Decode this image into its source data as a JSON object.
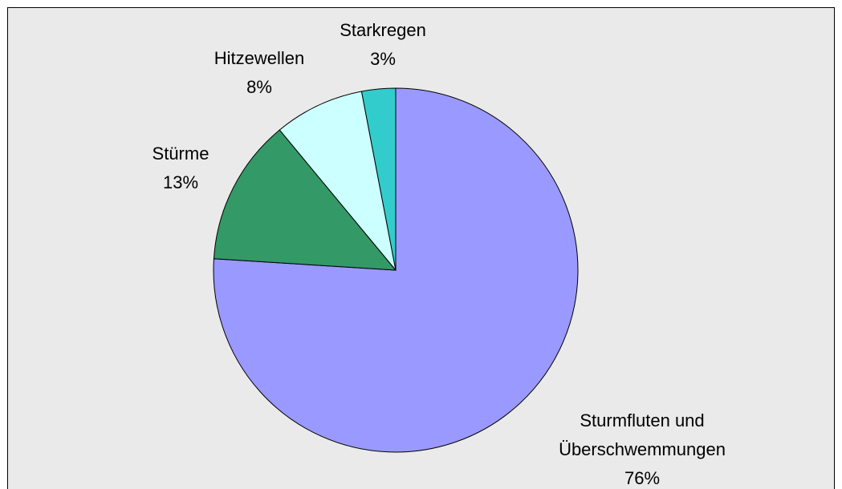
{
  "chart_data": {
    "type": "pie",
    "categories": [
      "Sturmfluten und Überschwemmungen",
      "Stürme",
      "Hitzewellen",
      "Starkregen"
    ],
    "values": [
      76,
      13,
      8,
      3
    ],
    "value_labels": [
      "76%",
      "13%",
      "8%",
      "3%"
    ],
    "colors": [
      "#9999ff",
      "#339966",
      "#ccffff",
      "#33cccc"
    ]
  }
}
